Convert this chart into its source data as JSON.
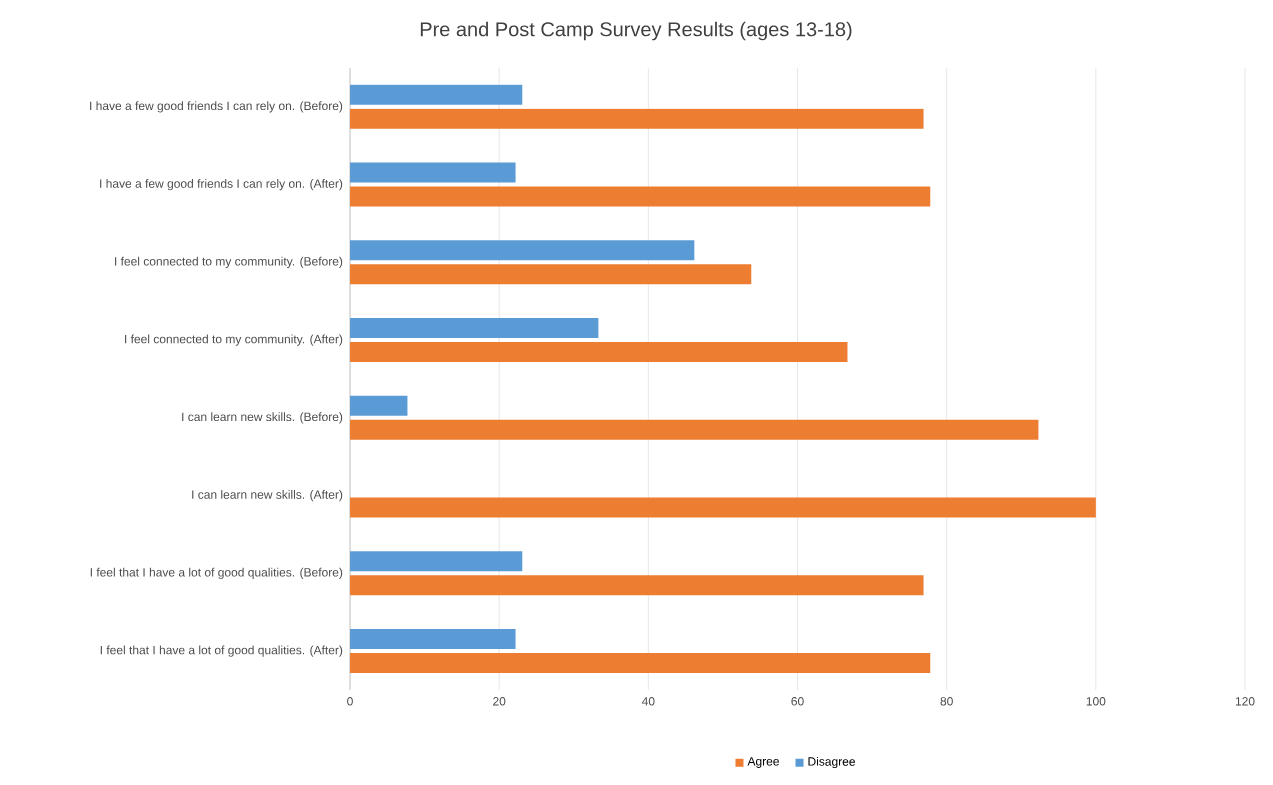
{
  "chart_data": {
    "type": "bar",
    "orientation": "horizontal",
    "title": "Pre and Post Camp Survey Results (ages 13-18)",
    "categories": [
      "I have a few good friends I can rely on. (Before)",
      "I have a few good friends I can rely on. (After)",
      "I feel connected to my community. (Before)",
      "I feel connected to my community. (After)",
      "I can learn new skills. (Before)",
      "I can learn new skills. (After)",
      "I feel that I have a lot of good qualities. (Before)",
      "I feel that I have a lot of good qualities. (After)"
    ],
    "series": [
      {
        "name": "Agree",
        "color": "#ed7d31",
        "values": [
          76.9,
          77.8,
          53.8,
          66.7,
          92.3,
          100,
          76.9,
          77.8
        ]
      },
      {
        "name": "Disagree",
        "color": "#5b9bd5",
        "values": [
          23.1,
          22.2,
          46.2,
          33.3,
          7.7,
          0,
          23.1,
          22.2
        ]
      }
    ],
    "xlim": [
      0,
      120
    ],
    "xticks": [
      0,
      20,
      40,
      60,
      80,
      100,
      120
    ],
    "grid": "x",
    "legend": "bottom"
  }
}
